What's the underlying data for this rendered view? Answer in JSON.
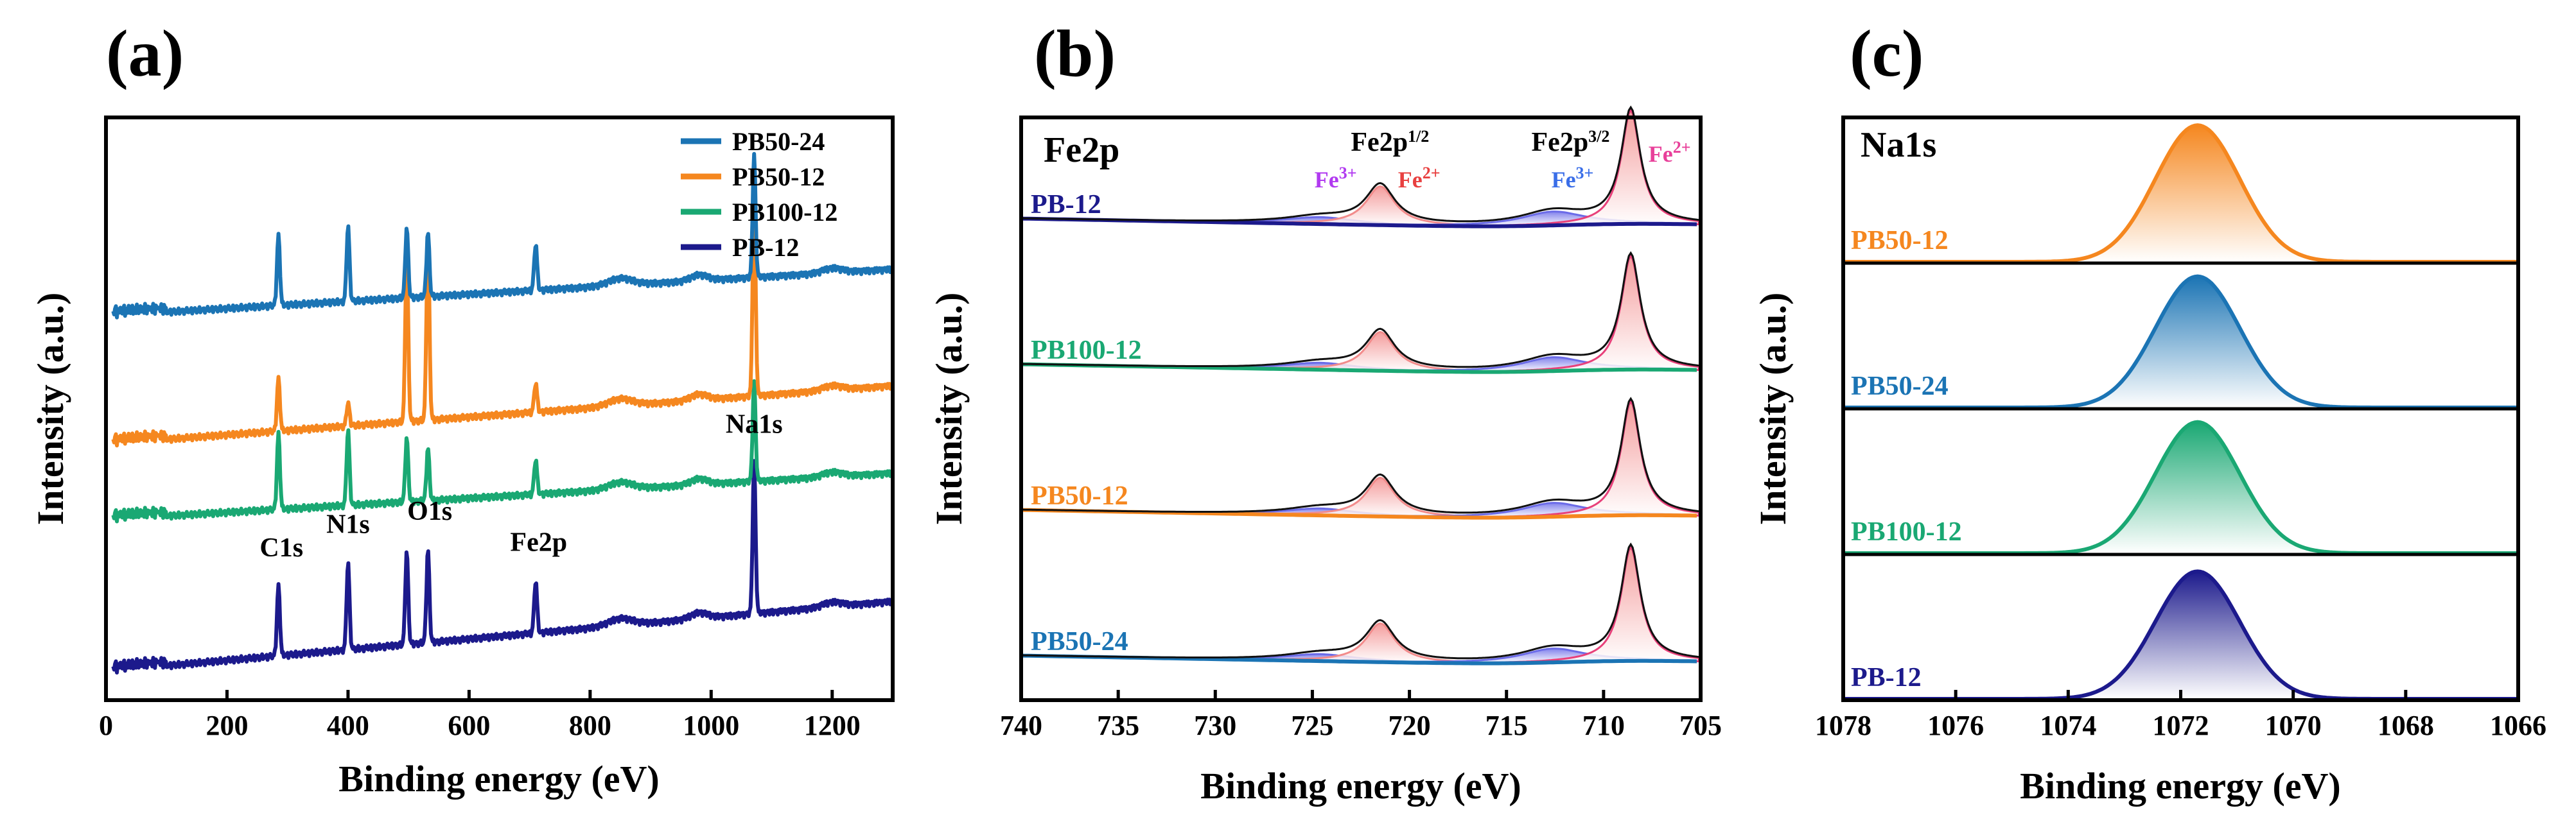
{
  "colors": {
    "PB-12": "#1c1a8c",
    "PB100-12": "#1aa873",
    "PB50-12": "#f5871f",
    "PB50-24": "#1b74b4",
    "fe2": "#e8407a",
    "fe3": "#6b6be8",
    "fe2_fill": "#f28b8b",
    "envelope": "#111111"
  },
  "chart_data": [
    {
      "panel": "(a)",
      "type": "line",
      "xlabel": "Binding energy (eV)",
      "ylabel": "Intensity (a.u.)",
      "xlim": [
        0,
        1300
      ],
      "xticks": [
        0,
        200,
        400,
        600,
        800,
        1000,
        1200
      ],
      "legend": [
        "PB50-24",
        "PB50-12",
        "PB100-12",
        "PB-12"
      ],
      "legend_position": "top-right",
      "series": [
        {
          "name": "PB-12",
          "baseline": 0.05,
          "rise": 0.12,
          "peaks": [
            [
              285,
              0.12
            ],
            [
              400,
              0.15
            ],
            [
              497,
              0.16
            ],
            [
              532,
              0.16
            ],
            [
              710,
              0.09
            ],
            [
              1071,
              0.26
            ]
          ]
        },
        {
          "name": "PB100-12",
          "baseline": 0.31,
          "rise": 0.08,
          "peaks": [
            [
              285,
              0.13
            ],
            [
              400,
              0.13
            ],
            [
              497,
              0.11
            ],
            [
              532,
              0.09
            ],
            [
              710,
              0.06
            ],
            [
              1071,
              0.17
            ]
          ]
        },
        {
          "name": "PB50-12",
          "baseline": 0.44,
          "rise": 0.1,
          "peaks": [
            [
              285,
              0.09
            ],
            [
              400,
              0.04
            ],
            [
              497,
              0.29
            ],
            [
              532,
              0.32
            ],
            [
              710,
              0.05
            ],
            [
              1071,
              0.36
            ]
          ]
        },
        {
          "name": "PB50-24",
          "baseline": 0.66,
          "rise": 0.08,
          "peaks": [
            [
              285,
              0.12
            ],
            [
              400,
              0.13
            ],
            [
              497,
              0.12
            ],
            [
              532,
              0.11
            ],
            [
              710,
              0.08
            ],
            [
              1071,
              0.21
            ]
          ]
        }
      ],
      "peak_labels": [
        {
          "text": "C1s",
          "x": 290
        },
        {
          "text": "N1s",
          "x": 400
        },
        {
          "text": "O1s",
          "x": 535
        },
        {
          "text": "Fe2p",
          "x": 715
        },
        {
          "text": "Na1s",
          "x": 1071
        }
      ]
    },
    {
      "panel": "(b)",
      "type": "line",
      "element": "Fe2p",
      "xlabel": "Binding energy (eV)",
      "ylabel": "Intensity (a.u.)",
      "xlim": [
        740,
        705
      ],
      "xticks": [
        740,
        735,
        730,
        725,
        720,
        715,
        710,
        705
      ],
      "samples": [
        "PB-12",
        "PB100-12",
        "PB50-12",
        "PB50-24"
      ],
      "components": [
        {
          "name": "Fe3+ 2p1/2",
          "center": 724.6,
          "width": 2.2,
          "height": 0.05
        },
        {
          "name": "Fe2+ 2p1/2",
          "center": 721.5,
          "width": 0.9,
          "height": 0.28
        },
        {
          "name": "Fe3+ 2p3/2",
          "center": 712.6,
          "width": 2.0,
          "height": 0.1
        },
        {
          "name": "Fe2+ 2p3/2",
          "center": 708.6,
          "width": 0.6,
          "height": 0.82
        }
      ],
      "annotations": [
        {
          "text": "Fe2p1/2",
          "x": 721.0
        },
        {
          "text": "Fe3+",
          "x": 723.8
        },
        {
          "text": "Fe2+",
          "x": 719.5
        },
        {
          "text": "Fe2p3/2",
          "x": 711.7
        },
        {
          "text": "Fe3+",
          "x": 711.6
        },
        {
          "text": "Fe2+",
          "x": 706.6
        }
      ]
    },
    {
      "panel": "(c)",
      "type": "line",
      "element": "Na1s",
      "xlabel": "Binding energy (eV)",
      "ylabel": "Intensity (a.u.)",
      "xlim": [
        1078,
        1066
      ],
      "xticks": [
        1078,
        1076,
        1074,
        1072,
        1070,
        1068,
        1066
      ],
      "samples": [
        "PB50-12",
        "PB50-24",
        "PB100-12",
        "PB-12"
      ],
      "peak": {
        "center": 1071.7,
        "sigma": 0.75
      },
      "peak_heights": [
        0.75,
        0.72,
        0.72,
        0.7
      ]
    }
  ]
}
